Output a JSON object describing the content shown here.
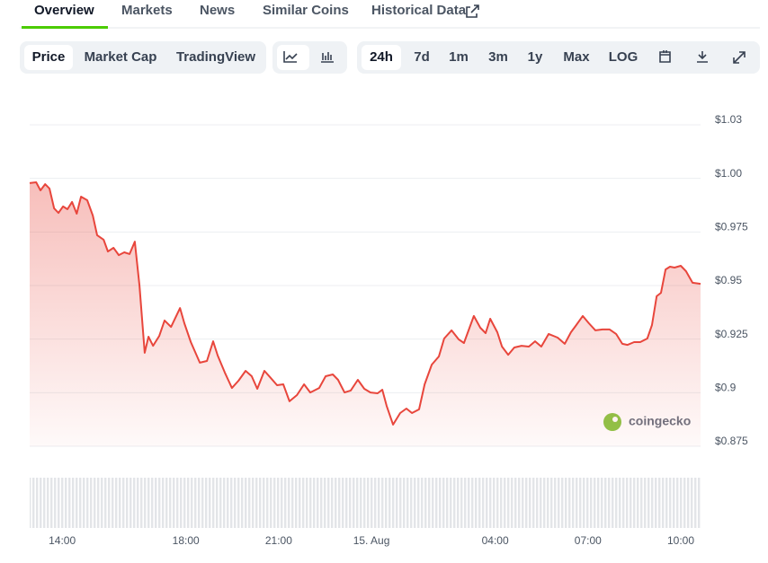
{
  "tabs": [
    "Overview",
    "Markets",
    "News",
    "Similar Coins",
    "Historical Data"
  ],
  "chart_buttons": [
    "Price",
    "Market Cap",
    "TradingView"
  ],
  "range_buttons": [
    "24h",
    "7d",
    "1m",
    "3m",
    "1y",
    "Max",
    "LOG"
  ],
  "watermark": "coingecko",
  "chart_data": {
    "type": "area",
    "color": "#e8463c",
    "grid": true,
    "x": [
      12.95,
      13.16,
      13.3,
      13.45,
      13.59,
      13.74,
      13.88,
      14.03,
      14.17,
      14.32,
      14.47,
      14.61,
      14.81,
      14.99,
      15.13,
      15.34,
      15.48,
      15.66,
      15.83,
      16.01,
      16.18,
      16.35,
      16.5,
      16.67,
      16.79,
      16.94,
      17.14,
      17.31,
      17.52,
      17.81,
      17.95,
      18.16,
      18.45,
      18.68,
      18.88,
      19.03,
      19.26,
      19.49,
      19.7,
      19.93,
      20.13,
      20.31,
      20.54,
      20.72,
      20.95,
      21.15,
      21.35,
      21.59,
      21.82,
      22.02,
      22.31,
      22.52,
      22.75,
      22.92,
      23.13,
      23.33,
      23.56,
      23.77,
      23.97,
      24.2,
      24.35,
      24.49,
      24.7,
      24.93,
      25.13,
      25.31,
      25.54,
      25.72,
      25.95,
      26.18,
      26.35,
      26.59,
      26.82,
      26.99,
      27.31,
      27.52,
      27.69,
      27.84,
      28.07,
      28.22,
      28.42,
      28.62,
      28.85,
      29.09,
      29.29,
      29.49,
      29.73,
      30.02,
      30.25,
      30.45,
      30.6,
      30.83,
      31.03,
      31.24,
      31.47,
      31.7,
      31.91,
      32.11,
      32.28,
      32.49,
      32.69,
      32.92,
      33.07,
      33.22,
      33.36,
      33.51,
      33.65,
      33.8,
      34.0,
      34.17,
      34.38,
      34.64
    ],
    "values": [
      0.9978,
      0.9982,
      0.9944,
      0.9973,
      0.9953,
      0.986,
      0.9839,
      0.9869,
      0.9856,
      0.989,
      0.9835,
      0.9915,
      0.9898,
      0.9827,
      0.9735,
      0.9714,
      0.9659,
      0.9676,
      0.9642,
      0.9655,
      0.9647,
      0.9705,
      0.95,
      0.9186,
      0.9261,
      0.9219,
      0.9265,
      0.9337,
      0.9307,
      0.9395,
      0.9324,
      0.9236,
      0.914,
      0.9148,
      0.924,
      0.9173,
      0.9094,
      0.9022,
      0.9056,
      0.9102,
      0.9077,
      0.9018,
      0.9102,
      0.9073,
      0.9035,
      0.9039,
      0.896,
      0.8989,
      0.9039,
      0.9001,
      0.9022,
      0.9077,
      0.9085,
      0.906,
      0.9001,
      0.901,
      0.906,
      0.9018,
      0.9001,
      0.8997,
      0.9014,
      0.8939,
      0.8851,
      0.8905,
      0.8926,
      0.8905,
      0.8922,
      0.9039,
      0.9131,
      0.9169,
      0.9253,
      0.9291,
      0.9249,
      0.9232,
      0.9358,
      0.9303,
      0.9278,
      0.9345,
      0.9282,
      0.9215,
      0.9177,
      0.9211,
      0.9219,
      0.9215,
      0.924,
      0.9215,
      0.9274,
      0.9257,
      0.9228,
      0.9282,
      0.9311,
      0.9358,
      0.9324,
      0.9291,
      0.9295,
      0.9295,
      0.9274,
      0.9228,
      0.9223,
      0.9236,
      0.9236,
      0.9253,
      0.9316,
      0.945,
      0.9466,
      0.9575,
      0.9588,
      0.9584,
      0.9592,
      0.9567,
      0.9513,
      0.9508
    ],
    "xlim": [
      12.95,
      34.64
    ],
    "xticks": [
      {
        "value": 14,
        "label": "14:00"
      },
      {
        "value": 18,
        "label": "18:00"
      },
      {
        "value": 21,
        "label": "21:00"
      },
      {
        "value": 24,
        "label": "15. Aug"
      },
      {
        "value": 28,
        "label": "04:00"
      },
      {
        "value": 31,
        "label": "07:00"
      },
      {
        "value": 34,
        "label": "10:00"
      }
    ],
    "ylim": [
      0.875,
      1.025
    ],
    "yticks": [
      {
        "value": 1.025,
        "label": "$1.03"
      },
      {
        "value": 1.0,
        "label": "$1.00"
      },
      {
        "value": 0.975,
        "label": "$0.975"
      },
      {
        "value": 0.95,
        "label": "$0.95"
      },
      {
        "value": 0.925,
        "label": "$0.925"
      },
      {
        "value": 0.9,
        "label": "$0.9"
      },
      {
        "value": 0.875,
        "label": "$0.875"
      }
    ]
  }
}
